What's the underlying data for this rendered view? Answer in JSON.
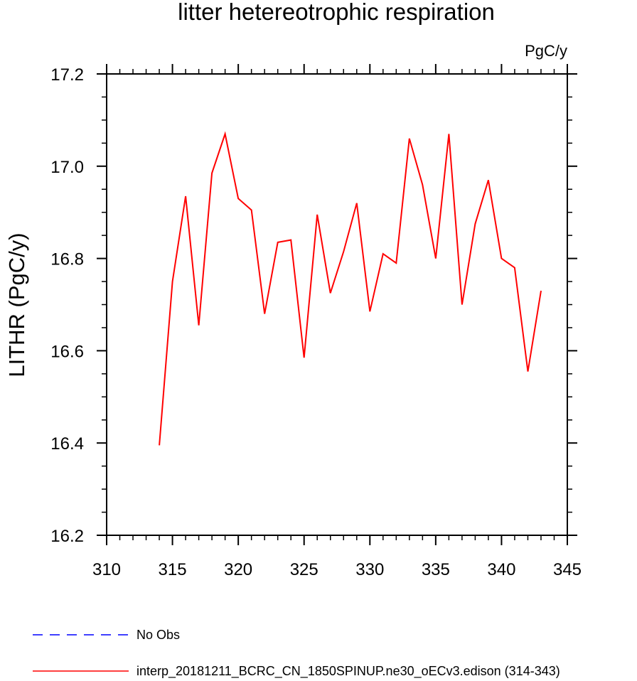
{
  "chart_data": {
    "type": "line",
    "title": "litter hetereotrophic respiration",
    "units_label": "PgC/y",
    "xlabel": "",
    "ylabel": "LITHR  (PgC/y)",
    "xlim": [
      310,
      345
    ],
    "ylim": [
      16.2,
      17.2
    ],
    "xticks": [
      310,
      315,
      320,
      325,
      330,
      335,
      340,
      345
    ],
    "yticks": [
      16.2,
      16.4,
      16.6,
      16.8,
      17.0,
      17.2
    ],
    "xtick_labels": [
      "310",
      "315",
      "320",
      "325",
      "330",
      "335",
      "340",
      "345"
    ],
    "ytick_labels": [
      "16.2",
      "16.4",
      "16.6",
      "16.8",
      "17.0",
      "17.2"
    ],
    "x_minor_step": 1,
    "y_minor_step": 0.05,
    "grid": false,
    "legend_position": "bottom-left",
    "series": [
      {
        "name": "interp_20181211_BCRC_CN_1850SPINUP.ne30_oECv3.edison (314-343)",
        "color": "#ff0000",
        "dash": "solid",
        "x": [
          314,
          315,
          316,
          317,
          318,
          319,
          320,
          321,
          322,
          323,
          324,
          325,
          326,
          327,
          328,
          329,
          330,
          331,
          332,
          333,
          334,
          335,
          336,
          337,
          338,
          339,
          340,
          341,
          342,
          343
        ],
        "y": [
          16.395,
          16.75,
          16.935,
          16.655,
          16.985,
          17.07,
          16.93,
          16.905,
          16.68,
          16.835,
          16.84,
          16.585,
          16.895,
          16.725,
          16.815,
          16.92,
          16.685,
          16.81,
          16.79,
          17.06,
          16.96,
          16.8,
          17.07,
          16.7,
          16.875,
          16.97,
          16.8,
          16.78,
          16.555,
          16.73
        ]
      }
    ],
    "legend": [
      {
        "label": "No Obs",
        "color": "#0000ff",
        "dash": "dashed"
      },
      {
        "label": "interp_20181211_BCRC_CN_1850SPINUP.ne30_oECv3.edison (314-343)",
        "color": "#ff0000",
        "dash": "solid"
      }
    ]
  }
}
